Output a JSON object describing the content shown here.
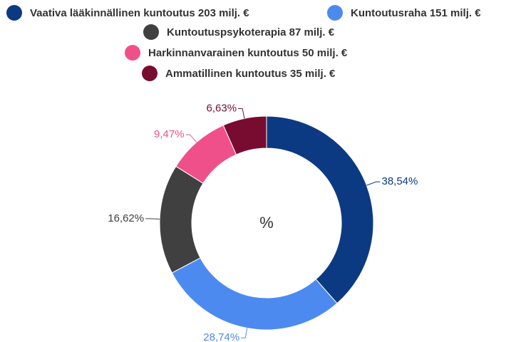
{
  "chart_data": {
    "type": "donut",
    "categories": [
      "Vaativa lääkinnällinen kuntoutus 203 milj. €",
      "Kuntoutusraha 151 milj. €",
      "Kuntoutuspsykoterapia 87 milj. €",
      "Harkinnanvarainen kuntoutus 50 milj. €",
      "Ammatillinen kuntoutus 35 milj. €"
    ],
    "values": [
      38.54,
      28.74,
      16.62,
      9.47,
      6.63
    ],
    "value_labels": [
      "38,54%",
      "28,74%",
      "16,62%",
      "9,47%",
      "6,63%"
    ],
    "colors": [
      "#0b3a82",
      "#4d8af0",
      "#404040",
      "#f0508a",
      "#780c30"
    ],
    "center_label": "%"
  }
}
